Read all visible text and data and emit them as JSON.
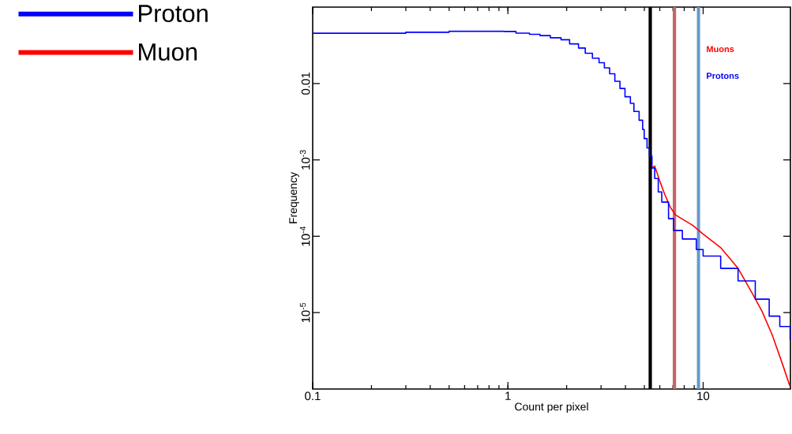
{
  "chart_data": {
    "type": "step",
    "xlabel": "Count per pixel",
    "ylabel": "Frequency",
    "log": "xy",
    "legend": "left",
    "xlim": [
      0.1,
      28
    ],
    "ylim": [
      1e-06,
      0.1
    ],
    "xticks": [
      0.1,
      1,
      10
    ],
    "yticks": [
      0.01,
      {
        "value": 0.001,
        "label": "10$^{-3}$"
      },
      {
        "value": 0.0001,
        "label": "10$^{-4}$"
      },
      {
        "value": 1e-05,
        "label": "10$^{-5}$"
      }
    ],
    "series": [
      {
        "name": "Proton",
        "color": "#0000ff",
        "x": [
          0.1,
          0.3,
          0.5,
          0.95,
          1.1,
          1.29,
          1.46,
          1.65,
          1.87,
          2.07,
          2.3,
          2.49,
          2.71,
          2.93,
          3.12,
          3.32,
          3.53,
          3.75,
          3.98,
          4.24,
          4.42,
          4.7,
          4.9,
          4.99,
          5.16,
          5.31,
          5.47,
          5.65,
          5.89,
          6.14,
          6.65,
          7.06,
          7.83,
          9.23,
          10,
          12.3,
          15.1,
          18.5,
          21.8,
          24.7,
          27.9
        ],
        "values": [
          0.0455,
          0.0469,
          0.0483,
          0.048,
          0.0456,
          0.044,
          0.0424,
          0.0397,
          0.0374,
          0.033,
          0.0291,
          0.0249,
          0.0214,
          0.0187,
          0.016,
          0.0134,
          0.0107,
          0.0086,
          0.0067,
          0.0055,
          0.0043,
          0.0033,
          0.0025,
          0.0019,
          0.00143,
          0.00112,
          0.00078,
          0.00057,
          0.00038,
          0.00028,
          0.00017,
          0.000119,
          9.2e-05,
          6.7e-05,
          5.5e-05,
          3.8e-05,
          2.6e-05,
          1.5e-05,
          9e-06,
          6.6e-06,
          4.4e-06
        ]
      },
      {
        "name": "Muon",
        "color": "#ff0000",
        "type": "line",
        "x": [
          5.47,
          5.65,
          6.01,
          6.37,
          6.79,
          7.22,
          8.85,
          10,
          12.3,
          15.1,
          17.7,
          20,
          22.6,
          25.7,
          27.8
        ],
        "values": [
          0.00078,
          0.00083,
          0.00052,
          0.00035,
          0.00024,
          0.00019,
          0.000139,
          0.000107,
          7.1e-05,
          3.8e-05,
          1.86e-05,
          1.05e-05,
          5.1e-06,
          2e-06,
          1.1e-06
        ]
      }
    ],
    "ref_lines": [
      {
        "axis": "x",
        "value": 5.36,
        "color": "#000000"
      },
      {
        "axis": "x",
        "value": 7.13,
        "color": "#c86464"
      },
      {
        "axis": "x",
        "value": 9.46,
        "color": "#6699cc"
      }
    ],
    "annotations": [
      "Muons",
      "Protons"
    ]
  }
}
